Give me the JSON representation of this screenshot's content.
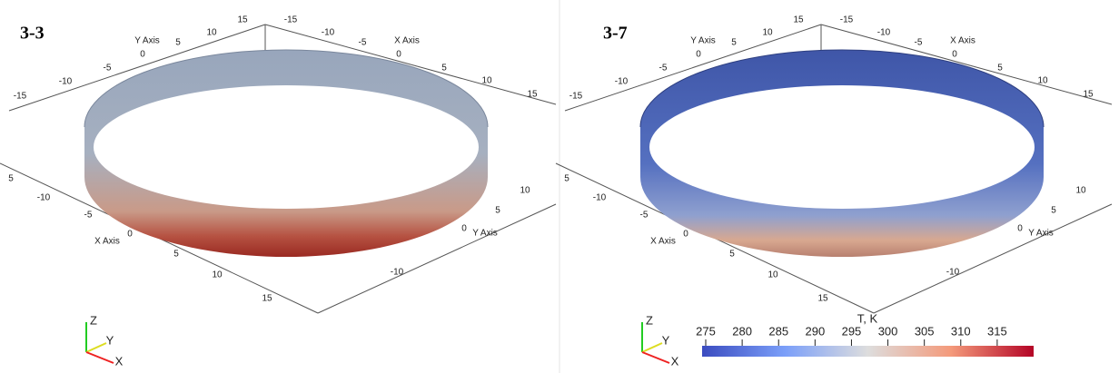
{
  "panels": [
    {
      "label": "3-3",
      "axis_titles": [
        "Y Axis",
        "X Axis",
        "X Axis",
        "Y Axis"
      ],
      "ticks": [
        "15",
        "10",
        "5",
        "0",
        "-5",
        "-10",
        "-15",
        "-15",
        "-10",
        "-5",
        "0",
        "5",
        "10",
        "15",
        "5",
        "-10",
        "-5",
        "0",
        "5",
        "10",
        "15",
        "10",
        "5",
        "0",
        "-10"
      ],
      "gizmo": [
        "Z",
        "Y",
        "X"
      ]
    },
    {
      "label": "3-7",
      "axis_titles": [
        "Y Axis",
        "X Axis",
        "X Axis",
        "Y Axis"
      ],
      "ticks": [
        "15",
        "10",
        "5",
        "0",
        "-5",
        "-10",
        "-15",
        "-15",
        "-10",
        "-5",
        "0",
        "5",
        "10",
        "15",
        "5",
        "-10",
        "-5",
        "0",
        "5",
        "10",
        "15",
        "10",
        "5",
        "0",
        "-10"
      ],
      "gizmo": [
        "Z",
        "Y",
        "X"
      ]
    }
  ],
  "colorbar": {
    "title": "T, K",
    "range": [
      274.5,
      320
    ],
    "ticks": [
      275,
      280,
      285,
      290,
      295,
      300,
      305,
      310,
      315
    ]
  }
}
